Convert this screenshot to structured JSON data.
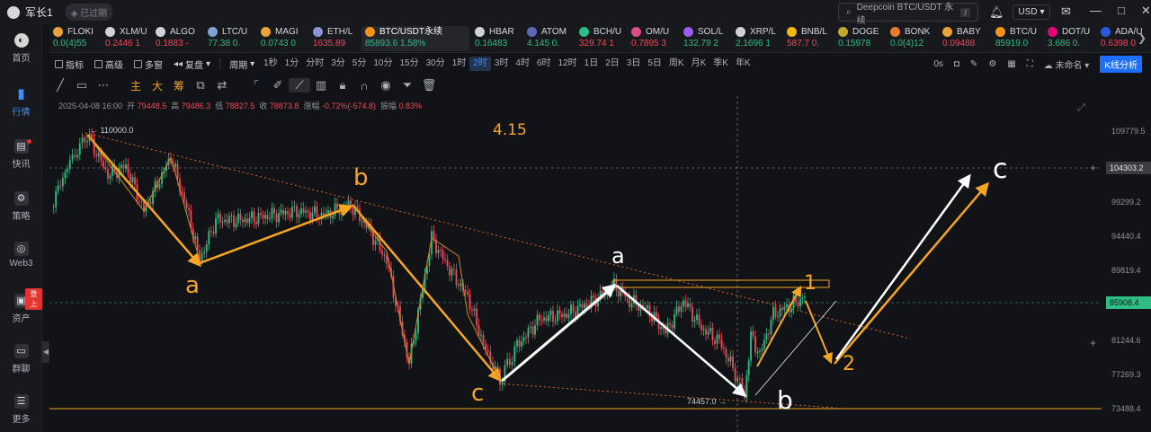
{
  "titlebar": {
    "user": "军长1",
    "status": "已过期",
    "search_placeholder": "Deepcoin BTC/USDT 永续",
    "search_shortcut": "/",
    "currency": "USD",
    "minimize": "—",
    "maximize": "□",
    "close": "✕"
  },
  "sidebar": {
    "items": [
      {
        "label": "首页",
        "icon": "home-icon"
      },
      {
        "label": "行情",
        "icon": "market-chart-icon"
      },
      {
        "label": "快讯",
        "icon": "news-icon"
      },
      {
        "label": "策略",
        "icon": "strategy-icon"
      },
      {
        "label": "Web3",
        "icon": "web3-icon"
      },
      {
        "label": "资产",
        "icon": "wallet-icon",
        "badge": "登上"
      },
      {
        "label": "群聊",
        "icon": "chat-icon"
      },
      {
        "label": "更多",
        "icon": "more-icon"
      }
    ]
  },
  "tickers": [
    {
      "name": "FLOKI",
      "price": "0.0(4)55",
      "dir": "up",
      "color": "#e8a33a"
    },
    {
      "name": "XLM/U",
      "price": "0.2446 1",
      "dir": "down",
      "color": "#cfd3d8"
    },
    {
      "name": "ALGO",
      "price": "0.1883 -",
      "dir": "down",
      "color": "#cfd3d8"
    },
    {
      "name": "LTC/U",
      "price": "77.38 0.",
      "dir": "up",
      "color": "#7da0d6"
    },
    {
      "name": "MAGI",
      "price": "0.0743 0",
      "dir": "up",
      "color": "#e8a33a"
    },
    {
      "name": "ETH/L",
      "price": "1635.89",
      "dir": "down",
      "color": "#8c93d6"
    },
    {
      "name": "BTC/USDT永续",
      "price": "85893.6 1.58%",
      "dir": "up",
      "color": "#f7931a"
    },
    {
      "name": "HBAR",
      "price": "0.16483",
      "dir": "up",
      "color": "#cfd3d8"
    },
    {
      "name": "ATOM",
      "price": "4.145 0.",
      "dir": "up",
      "color": "#5b6ab8"
    },
    {
      "name": "BCH/U",
      "price": "329.74 1",
      "dir": "down",
      "color": "#2ebd85"
    },
    {
      "name": "OM/U",
      "price": "0.7895 3",
      "dir": "down",
      "color": "#d84f8c"
    },
    {
      "name": "SOL/L",
      "price": "132.79 2",
      "dir": "up",
      "color": "#9a5cf0"
    },
    {
      "name": "XRP/L",
      "price": "2.1696 1",
      "dir": "up",
      "color": "#cfd3d8"
    },
    {
      "name": "BNB/L",
      "price": "587.7 0.",
      "dir": "down",
      "color": "#f0b90b"
    },
    {
      "name": "DOGE",
      "price": "0.15978",
      "dir": "up",
      "color": "#c2a633"
    },
    {
      "name": "BONK",
      "price": "0.0(4)12",
      "dir": "up",
      "color": "#e87c2c"
    },
    {
      "name": "BABY",
      "price": "0.09488",
      "dir": "down",
      "color": "#e8a33a"
    },
    {
      "name": "BTC/U",
      "price": "85919.0",
      "dir": "up",
      "color": "#f7931a"
    },
    {
      "name": "DOT/U",
      "price": "3.686 0.",
      "dir": "up",
      "color": "#e6007a"
    },
    {
      "name": "ADA/U",
      "price": "0.6398 0",
      "dir": "down",
      "color": "#2a5ad8"
    }
  ],
  "toolbar": {
    "indicators": "指标",
    "advanced": "高级",
    "multi_window": "多窗",
    "replay": "复盘",
    "period": "周期",
    "timeframes": [
      "1秒",
      "1分",
      "分时",
      "3分",
      "5分",
      "10分",
      "15分",
      "30分",
      "1时",
      "2时",
      "3时",
      "4时",
      "6时",
      "12时",
      "1日",
      "2日",
      "3日",
      "5日",
      "周K",
      "月K",
      "季K",
      "年K"
    ],
    "active_timeframe": "2时",
    "seconds": "0s",
    "layout_name": "未命名",
    "kline_analysis": "K线分析"
  },
  "drawing_tools": {
    "labels": [
      "主",
      "大",
      "筹"
    ]
  },
  "ohlc": {
    "date": "2025-04-08 16:00",
    "open_label": "开",
    "open": "79448.5",
    "high_label": "高",
    "high": "79486.3",
    "low_label": "低",
    "low": "78827.5",
    "close_label": "收",
    "close": "78873.8",
    "change_label": "涨幅",
    "change": "-0.72%(-574.8)",
    "amp_label": "振幅",
    "amp": "0.83%"
  },
  "chart": {
    "price_axis": [
      "109779.5",
      "99299.2",
      "94440.4",
      "89819.4",
      "81244.6",
      "77269.3",
      "73488.4"
    ],
    "current_price": "85908.4",
    "crosshair_price": "104303.2",
    "high_marker": "110000.0",
    "low_marker": "74457.0",
    "annotations": {
      "date_note": "4.15",
      "wave_a1": "a",
      "wave_b1": "b",
      "wave_c1": "c",
      "wave_a2": "a",
      "wave_b2": "b",
      "wave_c2": "c",
      "count_1": "1",
      "count_2": "2"
    },
    "colors": {
      "up": "#2ebd85",
      "down": "#f0485a",
      "annotation": "#f5a623",
      "white_arrow": "#ffffff",
      "current_price": "#2ebd85"
    }
  }
}
